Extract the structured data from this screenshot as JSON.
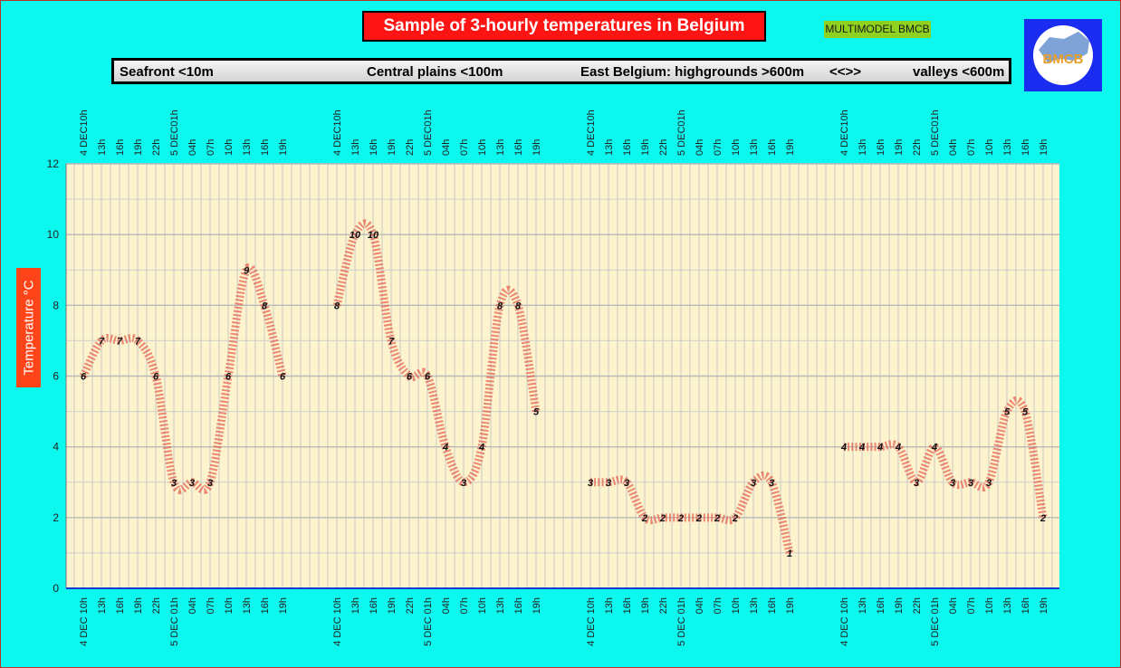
{
  "title": "Sample of 3-hourly temperatures in Belgium",
  "badge": "MULTIMODEL BMCB",
  "logo_text": "BMCB",
  "regions": [
    "Seafront <10m",
    "Central plains <100m",
    "East Belgium: highgrounds >600m",
    "<<>>",
    "valleys <600m"
  ],
  "ylabel": "Temperature   °C",
  "colors": {
    "background": "#0cf7ee",
    "plot_bg": "#fdf3cc",
    "title_bg": "#ff1414",
    "badge_bg": "#8fd11f",
    "ylabel_bg": "#ff4419",
    "series_line": "#e45a4a",
    "logo_bg": "#1a2cf0"
  },
  "chart_data": {
    "type": "line",
    "ylabel": "Temperature   °C",
    "ylim": [
      0,
      12
    ],
    "yticks": [
      0,
      2,
      4,
      6,
      8,
      10,
      12
    ],
    "grid": true,
    "legend": "none",
    "top_tick_labels": [
      "4 DEC10h",
      "13h",
      "16h",
      "19h",
      "22h",
      "5 DEC01h",
      "04h",
      "07h",
      "10h",
      "13h",
      "16h",
      "19h"
    ],
    "bottom_tick_labels": [
      "4 DEC 10h",
      "13h",
      "16h",
      "19h",
      "22h",
      "5 DEC 01h",
      "04h",
      "07h",
      "10h",
      "13h",
      "16h",
      "19h"
    ],
    "series": [
      {
        "values": [
          6,
          7,
          7,
          7,
          6,
          3,
          3,
          3,
          6,
          9,
          8,
          6
        ]
      },
      {
        "values": [
          8,
          10,
          10,
          7,
          6,
          6,
          4,
          3,
          4,
          8,
          8,
          5
        ]
      },
      {
        "values": [
          3,
          3,
          3,
          2,
          2,
          2,
          2,
          2,
          2,
          3,
          3,
          1
        ]
      },
      {
        "values": [
          4,
          4,
          4,
          4,
          3,
          4,
          3,
          3,
          3,
          5,
          5,
          2
        ]
      }
    ]
  }
}
